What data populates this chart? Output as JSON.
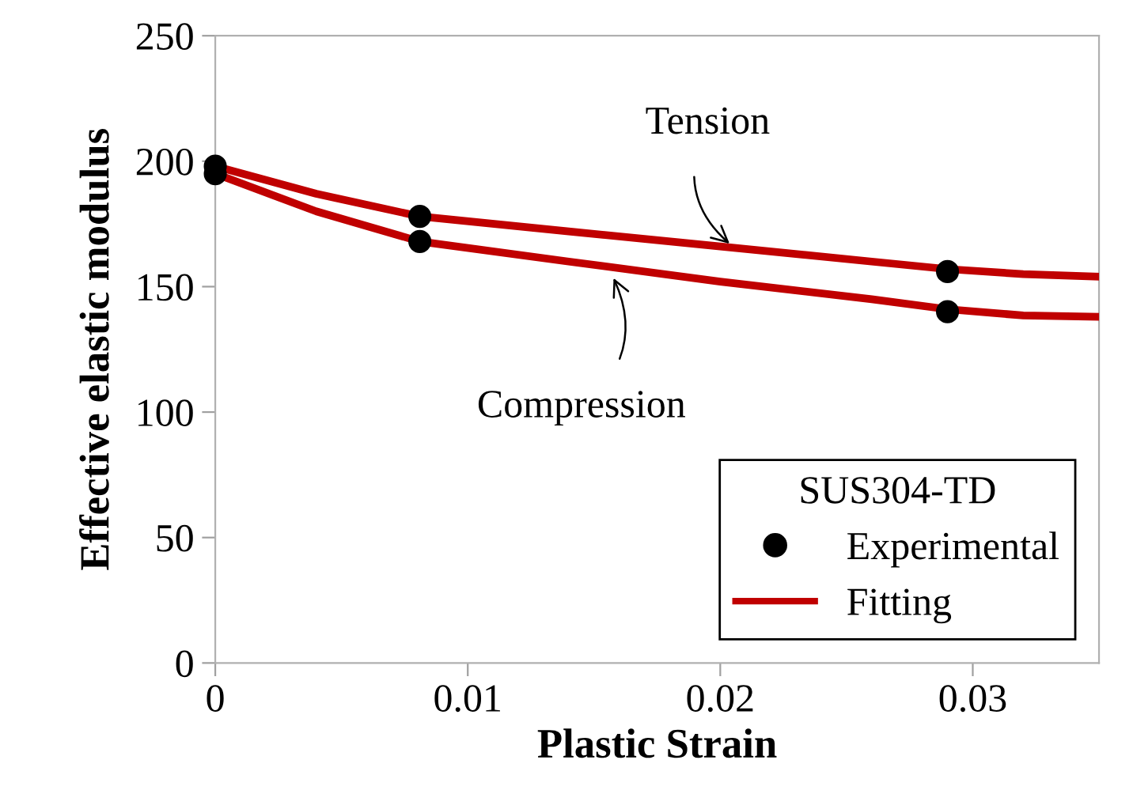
{
  "chart_data": {
    "type": "scatter",
    "xlabel": "Plastic Strain",
    "ylabel": "Effective elastic modulus",
    "legend_title": "SUS304-TD",
    "legend": "bottom right",
    "grid": false,
    "xlim": [
      0,
      0.035
    ],
    "xticks": [
      0,
      0.01,
      0.02,
      0.03
    ],
    "ylim": [
      0,
      250
    ],
    "yticks": [
      0,
      50,
      100,
      150,
      200,
      250
    ],
    "series": [
      {
        "name": "Experimental",
        "marker": "circle",
        "color": "#000000",
        "x": [
          0,
          0.0081,
          0.029
        ],
        "values": [
          198,
          178,
          156
        ]
      },
      {
        "marker": "circle",
        "color": "#000000",
        "x": [
          0,
          0.0081,
          0.029
        ],
        "values": [
          195,
          168,
          140
        ]
      },
      {
        "name": "Fitting",
        "type": "line",
        "marker": "none",
        "color": "#c00000",
        "x": [
          0,
          0.004,
          0.0081,
          0.014,
          0.02,
          0.026,
          0.029,
          0.032,
          0.035
        ],
        "values": [
          198,
          187,
          178,
          172,
          166,
          160,
          157,
          155,
          154
        ]
      },
      {
        "type": "line",
        "marker": "none",
        "color": "#c00000",
        "x": [
          0,
          0.004,
          0.0081,
          0.014,
          0.02,
          0.026,
          0.029,
          0.032,
          0.035
        ],
        "values": [
          195,
          180,
          168,
          160,
          152,
          145,
          141,
          138.5,
          138
        ]
      }
    ],
    "annotations": [
      {
        "text": "Tension",
        "x": 0.0205,
        "y": 166
      },
      {
        "text": "Compression",
        "x": 0.0157,
        "y": 155
      }
    ]
  }
}
